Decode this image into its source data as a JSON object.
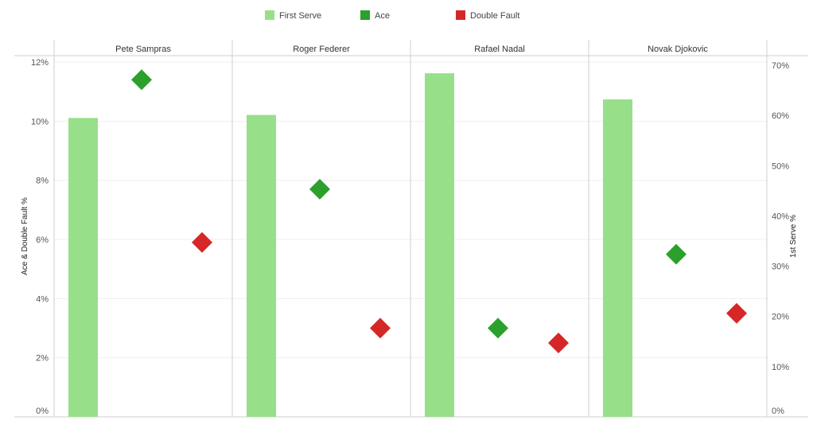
{
  "chart_data": {
    "type": "bar",
    "categories": [
      "Pete Sampras",
      "Roger Federer",
      "Rafael Nadal",
      "Novak Djokovic"
    ],
    "series": [
      {
        "name": "First Serve",
        "type": "bar",
        "axis": "right",
        "values": [
          59.5,
          60.1,
          68.4,
          63.2
        ],
        "color": "#98df8a"
      },
      {
        "name": "Ace",
        "type": "scatter",
        "marker": "diamond",
        "axis": "left",
        "values": [
          11.4,
          7.7,
          3.0,
          5.5
        ],
        "color": "#2ca02c"
      },
      {
        "name": "Double Fault",
        "type": "scatter",
        "marker": "diamond",
        "axis": "left",
        "values": [
          5.9,
          3.0,
          2.5,
          3.5
        ],
        "color": "#d62728"
      }
    ],
    "left_axis": {
      "label": "Ace & Double Fault %",
      "range": [
        0,
        12
      ],
      "ticks": [
        0,
        2,
        4,
        6,
        8,
        10,
        12
      ],
      "tick_labels": [
        "0%",
        "2%",
        "4%",
        "6%",
        "8%",
        "10%",
        "12%"
      ]
    },
    "right_axis": {
      "label": "1st Serve %",
      "range": [
        0,
        70
      ],
      "ticks": [
        0,
        10,
        20,
        30,
        40,
        50,
        60,
        70
      ],
      "tick_labels": [
        "0%",
        "10%",
        "20%",
        "30%",
        "40%",
        "50%",
        "60%",
        "70%"
      ]
    },
    "legend": {
      "position": "top-center",
      "entries": [
        "First Serve",
        "Ace",
        "Double Fault"
      ]
    },
    "grid": true
  }
}
